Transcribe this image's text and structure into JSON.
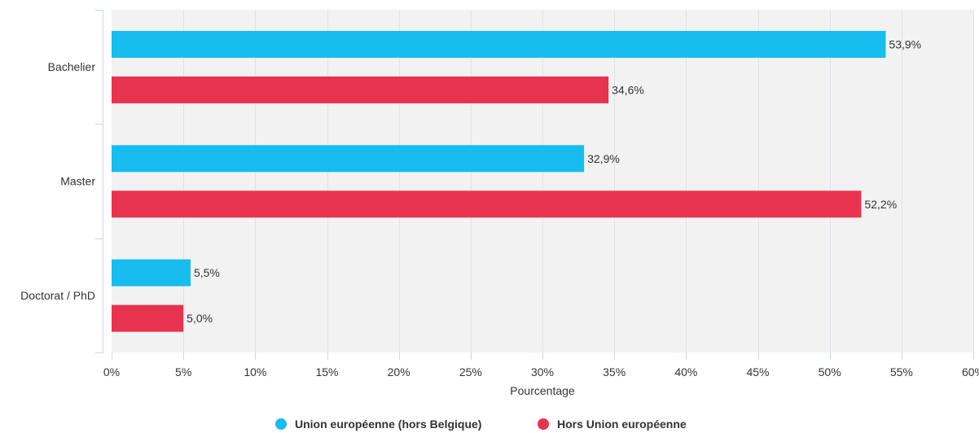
{
  "chart_data": {
    "type": "bar",
    "orientation": "horizontal",
    "categories": [
      "Bachelier",
      "Master",
      "Doctorat / PhD"
    ],
    "series": [
      {
        "name": "Union européenne (hors Belgique)",
        "color": "#17bdee",
        "values": [
          53.9,
          32.9,
          5.5
        ],
        "labels": [
          "53,9%",
          "32,9%",
          "5,5%"
        ]
      },
      {
        "name": "Hors Union européenne",
        "color": "#e8334f",
        "values": [
          34.6,
          52.2,
          5.0
        ],
        "labels": [
          "34,6%",
          "52,2%",
          "5,0%"
        ]
      }
    ],
    "xlabel": "Pourcentage",
    "ylabel": "",
    "xlim": [
      0,
      60
    ],
    "x_ticks": [
      0,
      5,
      10,
      15,
      20,
      25,
      30,
      35,
      40,
      45,
      50,
      55,
      60
    ],
    "x_tick_labels": [
      "0%",
      "5%",
      "10%",
      "15%",
      "20%",
      "25%",
      "30%",
      "35%",
      "40%",
      "45%",
      "50%",
      "55%",
      "60%"
    ],
    "grid": true,
    "legend": "bottom-center",
    "plot_background": "#f2f2f2",
    "grid_color": "#dde3ea"
  }
}
